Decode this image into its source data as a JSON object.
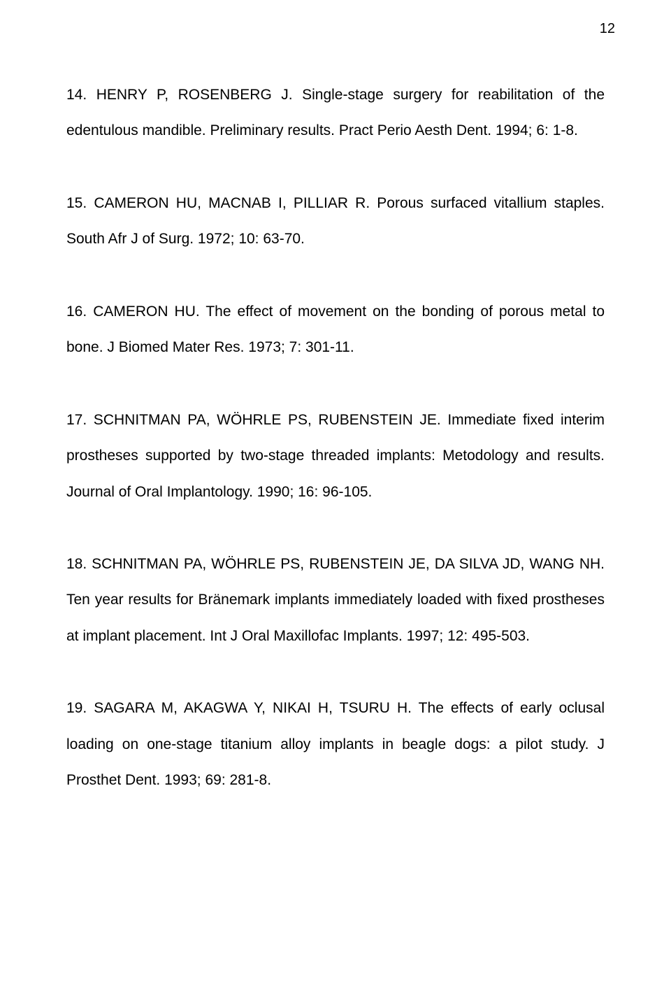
{
  "page_number": "12",
  "references": [
    {
      "text": "14. HENRY P, ROSENBERG J. Single-stage surgery for reabilitation of the edentulous mandible. Preliminary results. Pract Perio Aesth Dent. 1994; 6: 1-8."
    },
    {
      "text": "15. CAMERON HU, MACNAB I, PILLIAR R. Porous surfaced vitallium staples. South Afr J of Surg. 1972; 10: 63-70."
    },
    {
      "text": "16. CAMERON HU. The effect of movement on the bonding of porous metal to bone. J Biomed Mater Res. 1973; 7: 301-11."
    },
    {
      "text": "17. SCHNITMAN PA, WÖHRLE PS, RUBENSTEIN JE. Immediate fixed interim prostheses supported by two-stage threaded implants: Metodology and results. Journal of Oral Implantology. 1990; 16: 96-105."
    },
    {
      "text": "18. SCHNITMAN PA, WÖHRLE PS, RUBENSTEIN JE, DA SILVA JD, WANG NH. Ten year results for Bränemark implants immediately loaded with fixed prostheses at implant placement. Int J Oral Maxillofac Implants. 1997; 12: 495-503."
    },
    {
      "text": "19. SAGARA M, AKAGWA Y, NIKAI H, TSURU H. The effects of early oclusal loading on one-stage titanium alloy implants in beagle dogs: a pilot study. J Prosthet Dent. 1993; 69: 281-8."
    }
  ]
}
